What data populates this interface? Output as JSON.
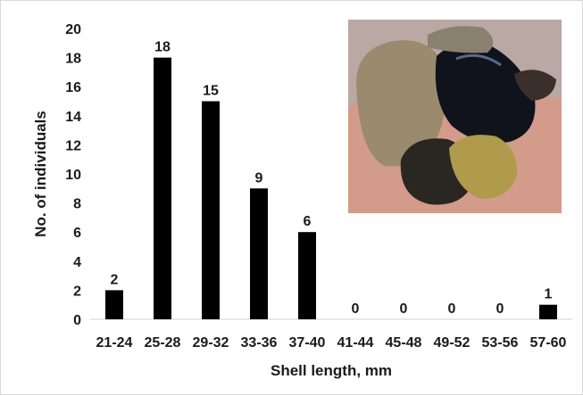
{
  "chart_data": {
    "type": "bar",
    "title": "",
    "xlabel": "Shell length, mm",
    "ylabel": "No. of individuals",
    "categories": [
      "21-24",
      "25-28",
      "29-32",
      "33-36",
      "37-40",
      "41-44",
      "45-48",
      "49-52",
      "53-56",
      "57-60"
    ],
    "values": [
      2,
      18,
      15,
      9,
      6,
      0,
      0,
      0,
      0,
      1
    ],
    "ylim": [
      0,
      20
    ],
    "yticks": [
      0,
      2,
      4,
      6,
      8,
      10,
      12,
      14,
      16,
      18,
      20
    ],
    "grid": false,
    "legend": "none",
    "data_labels": true,
    "bar_color": "#000000"
  },
  "inset_photo": {
    "subject": "mussel shells in a hand with pebbles",
    "colors": {
      "background": "#b9a8a3",
      "hand": "#d39b8a",
      "rock": "#9a8a6e",
      "shell": "#10131c",
      "pebble": "#b09a4c"
    }
  }
}
